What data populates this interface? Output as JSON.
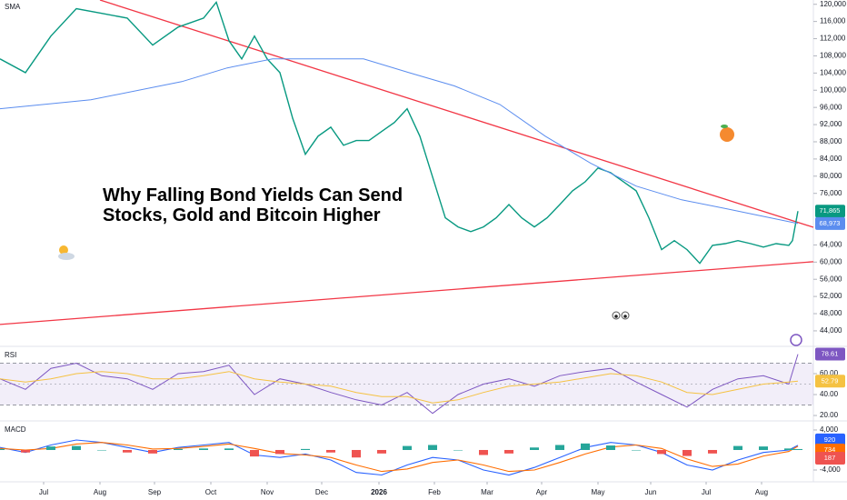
{
  "chart_data": [
    {
      "type": "line",
      "annotation": [
        "Why Falling Bond Yields Can Send",
        "Stocks, Gold and Bitcoin Higher"
      ],
      "xlim": [
        0,
        447.5
      ],
      "ylim": [
        40600,
        121000
      ],
      "yticks": [
        {
          "value": 120000,
          "label": "120,000"
        },
        {
          "value": 116000,
          "label": "116,000"
        },
        {
          "value": 112000,
          "label": "112,000"
        },
        {
          "value": 108000,
          "label": "108,000"
        },
        {
          "value": 104000,
          "label": "104,000"
        },
        {
          "value": 100000,
          "label": "100,000"
        },
        {
          "value": 96000,
          "label": "96,000"
        },
        {
          "value": 92000,
          "label": "92,000"
        },
        {
          "value": 88000,
          "label": "88,000"
        },
        {
          "value": 84000,
          "label": "84,000"
        },
        {
          "value": 80000,
          "label": "80,000"
        },
        {
          "value": 76000,
          "label": "76,000"
        },
        {
          "value": 64000,
          "label": "64,000"
        },
        {
          "value": 60000,
          "label": "60,000"
        },
        {
          "value": 56000,
          "label": "56,000"
        },
        {
          "value": 52000,
          "label": "52,000"
        },
        {
          "value": 48000,
          "label": "48,000"
        },
        {
          "value": 44000,
          "label": "44,000"
        }
      ],
      "series": [
        {
          "color": "#089981",
          "x": [
            0,
            14,
            28,
            42,
            56,
            70,
            84,
            98,
            112,
            119,
            126,
            133,
            140,
            147,
            154,
            161,
            168,
            175,
            182,
            189,
            196,
            203,
            210,
            217,
            224,
            231,
            238,
            245,
            252,
            259,
            266,
            273,
            280,
            287,
            294,
            301,
            308,
            315,
            322,
            329,
            336,
            343,
            350,
            357,
            364,
            371,
            378,
            385,
            392,
            399,
            406,
            413,
            420,
            427,
            434,
            436,
            439
          ],
          "values": [
            107300,
            104100,
            112600,
            119000,
            117900,
            116800,
            110500,
            114700,
            116800,
            120500,
            111500,
            107300,
            112600,
            107300,
            104100,
            93500,
            85100,
            89300,
            91400,
            87200,
            88300,
            88300,
            90400,
            92500,
            95700,
            89300,
            79800,
            70300,
            68200,
            67100,
            68200,
            70300,
            73400,
            70300,
            68200,
            70300,
            73400,
            76600,
            78700,
            81900,
            80800,
            78700,
            76600,
            70300,
            62900,
            65000,
            62900,
            59700,
            63900,
            64300,
            65000,
            64300,
            63500,
            64300,
            63900,
            65000,
            71865
          ],
          "value_labels": [
            null,
            null,
            null,
            null,
            null,
            null,
            null,
            null,
            null,
            null,
            null,
            null,
            null,
            null,
            null,
            null,
            null,
            null,
            null,
            null,
            null,
            null,
            null,
            null,
            null,
            null,
            null,
            null,
            null,
            null,
            null,
            null,
            null,
            null,
            null,
            null,
            null,
            null,
            null,
            null,
            null,
            null,
            null,
            null,
            null,
            null,
            null,
            null,
            null,
            null,
            null,
            null,
            null,
            null,
            null,
            null,
            "71,865"
          ]
        },
        {
          "name": "SMA",
          "color": "#5b8def",
          "x": [
            0,
            50,
            100,
            125,
            150,
            200,
            225,
            250,
            275,
            300,
            325,
            350,
            375,
            400,
            439
          ],
          "values": [
            95700,
            97800,
            102000,
            105200,
            107300,
            107300,
            104100,
            101000,
            96700,
            89300,
            83000,
            77700,
            74500,
            72400,
            68973
          ],
          "value_labels": [
            null,
            null,
            null,
            null,
            null,
            null,
            null,
            null,
            null,
            null,
            null,
            null,
            null,
            null,
            "68,973"
          ]
        }
      ],
      "trendlines": [
        {
          "x": [
            55,
            447.5
          ],
          "values": [
            121000,
            68100
          ]
        },
        {
          "x": [
            0,
            447.5
          ],
          "values": [
            45500,
            60100
          ]
        }
      ],
      "trendline_color": "#f23645"
    },
    {
      "type": "line",
      "title": "RSI",
      "xlim": [
        0,
        447.5
      ],
      "ylim": [
        15.7,
        84.3
      ],
      "yticks": [
        {
          "value": 60,
          "label": "60.00"
        },
        {
          "value": 40,
          "label": "40.00"
        },
        {
          "value": 20,
          "label": "20.00"
        }
      ],
      "band": [
        30,
        70
      ],
      "midline": 50,
      "band_color": "#7e57c2",
      "x": [
        0,
        14,
        28,
        42,
        56,
        70,
        84,
        98,
        112,
        126,
        140,
        154,
        168,
        182,
        196,
        210,
        224,
        238,
        252,
        266,
        280,
        294,
        308,
        322,
        336,
        350,
        364,
        378,
        392,
        406,
        420,
        434,
        439
      ],
      "series": [
        {
          "color": "#7e57c2",
          "values": [
            55,
            45,
            65,
            70,
            58,
            55,
            45,
            60,
            62,
            68,
            40,
            55,
            50,
            42,
            35,
            30,
            42,
            22,
            40,
            50,
            55,
            48,
            58,
            62,
            65,
            52,
            40,
            28,
            45,
            55,
            58,
            50,
            78.61
          ]
        },
        {
          "color": "#f5c242",
          "values": [
            55,
            52,
            55,
            60,
            62,
            60,
            55,
            55,
            58,
            62,
            55,
            52,
            50,
            48,
            42,
            38,
            38,
            32,
            35,
            42,
            48,
            50,
            52,
            56,
            60,
            58,
            52,
            42,
            40,
            45,
            50,
            52,
            52.79
          ]
        }
      ]
    },
    {
      "type": "combo",
      "title": "MACD",
      "xlim": [
        0,
        447.5
      ],
      "ylim": [
        -6000,
        5450
      ],
      "yticks": [
        {
          "value": 4000,
          "label": "4,000"
        },
        {
          "value": -4000,
          "label": "-4,000"
        }
      ],
      "xticks": [
        {
          "value": 24,
          "label": "Jul"
        },
        {
          "value": 55,
          "label": "Aug"
        },
        {
          "value": 85,
          "label": "Sep"
        },
        {
          "value": 116,
          "label": "Oct"
        },
        {
          "value": 147,
          "label": "Nov"
        },
        {
          "value": 177,
          "label": "Dec"
        },
        {
          "value": 208.5,
          "label": "2026"
        },
        {
          "value": 239,
          "label": "Feb"
        },
        {
          "value": 268,
          "label": "Mar"
        },
        {
          "value": 298,
          "label": "Apr"
        },
        {
          "value": 329,
          "label": "May"
        },
        {
          "value": 358,
          "label": "Jun"
        },
        {
          "value": 388.5,
          "label": "Jul"
        },
        {
          "value": 419,
          "label": "Aug"
        }
      ],
      "x": [
        0,
        14,
        28,
        42,
        56,
        70,
        84,
        98,
        112,
        126,
        140,
        154,
        168,
        182,
        196,
        210,
        224,
        238,
        252,
        266,
        280,
        294,
        308,
        322,
        336,
        350,
        364,
        378,
        392,
        406,
        420,
        434,
        439
      ],
      "series": [
        {
          "type": "line",
          "color": "#2962ff",
          "values": [
            500,
            -500,
            1000,
            2000,
            1500,
            500,
            -500,
            500,
            1000,
            1500,
            -1000,
            -1500,
            -800,
            -2000,
            -4500,
            -5000,
            -3000,
            -1500,
            -2000,
            -4000,
            -5000,
            -3500,
            -1500,
            500,
            1500,
            1000,
            -500,
            -3000,
            -4000,
            -2000,
            -500,
            0,
            920
          ]
        },
        {
          "type": "line",
          "color": "#ff6d00",
          "values": [
            300,
            0,
            300,
            1200,
            1500,
            1000,
            200,
            300,
            700,
            1200,
            300,
            -700,
            -1000,
            -1500,
            -3000,
            -4300,
            -3800,
            -2500,
            -2000,
            -3000,
            -4300,
            -4000,
            -2500,
            -800,
            600,
            1000,
            300,
            -1800,
            -3300,
            -2800,
            -1200,
            -300,
            734
          ]
        },
        {
          "type": "bar",
          "colors": [
            "#26a69a",
            "#ef5350"
          ],
          "values": [
            200,
            -500,
            700,
            800,
            0,
            -500,
            -700,
            200,
            300,
            300,
            -1300,
            -800,
            200,
            -500,
            -1500,
            -700,
            800,
            1000,
            0,
            -1000,
            -700,
            500,
            1000,
            1300,
            900,
            0,
            -800,
            -1200,
            -700,
            800,
            700,
            300,
            187
          ]
        }
      ]
    }
  ]
}
